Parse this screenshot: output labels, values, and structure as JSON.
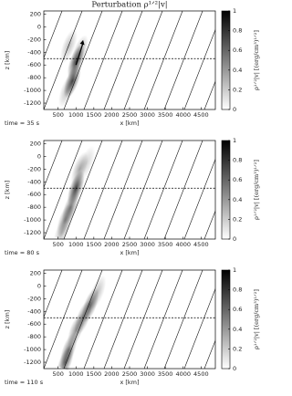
{
  "chart_data": [
    {
      "type": "heatmap",
      "title": "Perturbation ρ¹ᐟ²|v|",
      "time_label": "time = 35 s",
      "xlabel": "x [km]",
      "ylabel": "z [km]",
      "xlim": [
        100,
        4900
      ],
      "ylim": [
        -1300,
        250
      ],
      "xticks": [
        500,
        1000,
        1500,
        2000,
        2500,
        3000,
        3500,
        4000,
        4500
      ],
      "yticks": [
        200,
        0,
        -200,
        -400,
        -600,
        -800,
        -1000,
        -1200
      ],
      "hline": -500,
      "colorbar": {
        "label": "ρ¹ᐟ²|v|  [(erg/cm³)¹ᐟ²]",
        "zlim": [
          0,
          1
        ],
        "zticks": [
          0,
          0.2,
          0.4,
          0.6,
          0.8,
          1
        ]
      },
      "blobs": {
        "x": [
          1000,
          900,
          800,
          1100,
          750
        ],
        "z": [
          -550,
          -850,
          -300,
          -400,
          -1000
        ],
        "values": [
          0.8,
          0.85,
          0.3,
          0.4,
          0.3
        ]
      }
    },
    {
      "type": "heatmap",
      "time_label": "time = 80 s",
      "xlabel": "x [km]",
      "ylabel": "z [km]",
      "xlim": [
        100,
        4900
      ],
      "ylim": [
        -1300,
        250
      ],
      "xticks": [
        500,
        1000,
        1500,
        2000,
        2500,
        3000,
        3500,
        4000,
        4500
      ],
      "yticks": [
        200,
        0,
        -200,
        -400,
        -600,
        -800,
        -1000,
        -1200
      ],
      "hline": -500,
      "colorbar": {
        "label": "ρ¹ᐟ²|v|  [(erg/cm³)¹ᐟ²]",
        "zlim": [
          0,
          1
        ],
        "zticks": [
          0,
          0.2,
          0.4,
          0.6,
          0.8,
          1
        ]
      },
      "blobs": {
        "x": [
          1000,
          850,
          700,
          1100,
          600,
          1300
        ],
        "z": [
          -500,
          -800,
          -1000,
          -200,
          -1200,
          -100
        ],
        "values": [
          0.9,
          0.6,
          0.5,
          0.4,
          0.3,
          0.2
        ]
      }
    },
    {
      "type": "heatmap",
      "time_label": "time = 110 s",
      "xlabel": "x [km]",
      "ylabel": "z [km]",
      "xlim": [
        100,
        4900
      ],
      "ylim": [
        -1300,
        250
      ],
      "xticks": [
        500,
        1000,
        1500,
        2000,
        2500,
        3000,
        3500,
        4000,
        4500
      ],
      "yticks": [
        200,
        0,
        -200,
        -400,
        -600,
        -800,
        -1000,
        -1200
      ],
      "hline": -500,
      "colorbar": {
        "label": "ρ¹ᐟ²|v|  [(erg/cm³)¹ᐟ²]",
        "zlim": [
          0,
          1
        ],
        "zticks": [
          0,
          0.2,
          0.4,
          0.6,
          0.8,
          1
        ]
      },
      "blobs": {
        "x": [
          1400,
          1200,
          1000,
          800,
          700,
          1600
        ],
        "z": [
          -300,
          -500,
          -700,
          -1000,
          -1200,
          -100
        ],
        "values": [
          0.7,
          0.6,
          0.5,
          0.6,
          0.7,
          0.3
        ]
      }
    }
  ]
}
